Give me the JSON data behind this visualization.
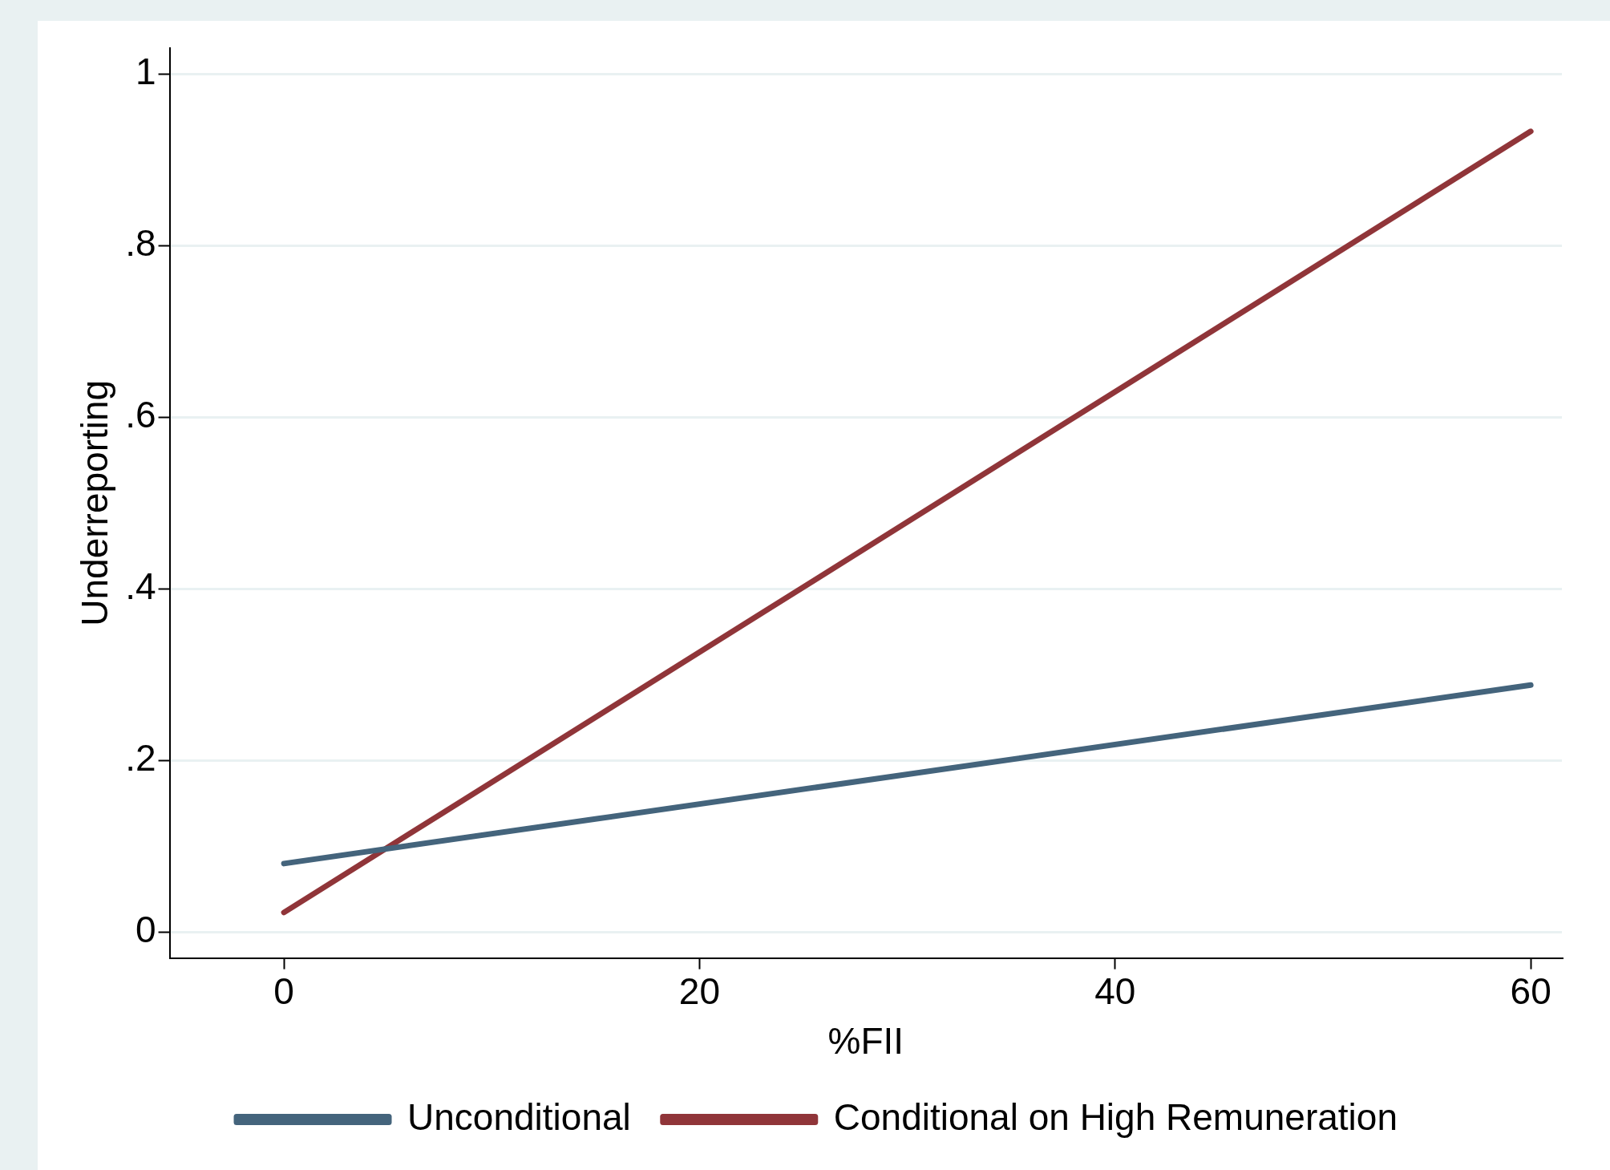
{
  "chart_data": {
    "type": "line",
    "xlabel": "%FII",
    "ylabel": "Underreporting",
    "series": [
      {
        "name": "Unconditional",
        "color": "#44647c",
        "values": [
          0.08,
          0.288
        ]
      },
      {
        "name": "Conditional on High Remuneration",
        "color": "#903539",
        "values": [
          0.023,
          0.933
        ]
      }
    ],
    "x": [
      0,
      60
    ],
    "xlim": [
      -5.5,
      61.5
    ],
    "xticks": [
      0,
      20,
      40,
      60
    ],
    "ylim": [
      -0.03,
      1.03
    ],
    "yticks": [
      0,
      {
        "value": 0.2,
        "label": ".2"
      },
      {
        "value": 0.4,
        "label": ".4"
      },
      {
        "value": 0.6,
        "label": ".6"
      },
      {
        "value": 0.8,
        "label": ".8"
      },
      1
    ],
    "grid": "y",
    "legend": "bottom",
    "marker": "none",
    "line_style": "solid"
  }
}
